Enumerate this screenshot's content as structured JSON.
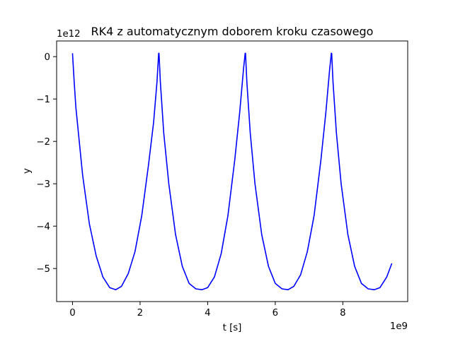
{
  "chart_data": {
    "type": "line",
    "title": "RK4 z automatycznym doborem kroku czasowego",
    "xlabel": "t [s]",
    "ylabel": "y",
    "x_offset_label": "1e9",
    "y_offset_label": "1e12",
    "x_multiplier": 1000000000,
    "y_multiplier": 1000000000000,
    "xlim": [
      -0.47,
      9.92
    ],
    "ylim": [
      -5.78,
      0.37
    ],
    "x_ticks": [
      0,
      2,
      4,
      6,
      8
    ],
    "y_ticks": [
      0,
      -1,
      -2,
      -3,
      -4,
      -5
    ],
    "x_tick_labels": [
      "0",
      "2",
      "4",
      "6",
      "8"
    ],
    "y_tick_labels": [
      "0",
      "−1",
      "−2",
      "−3",
      "−4",
      "−5"
    ],
    "grid": false,
    "series": [
      {
        "color": "#0000ff",
        "x": [
          0.0,
          0.05,
          0.1,
          0.2,
          0.3,
          0.5,
          0.7,
          0.9,
          1.1,
          1.28,
          1.45,
          1.65,
          1.85,
          2.05,
          2.25,
          2.4,
          2.5,
          2.55,
          2.56,
          2.6,
          2.7,
          2.85,
          3.05,
          3.25,
          3.45,
          3.65,
          3.83,
          4.0,
          4.2,
          4.4,
          4.6,
          4.8,
          4.95,
          5.06,
          5.11,
          5.12,
          5.16,
          5.26,
          5.4,
          5.6,
          5.8,
          6.0,
          6.2,
          6.38,
          6.55,
          6.75,
          6.95,
          7.15,
          7.35,
          7.5,
          7.61,
          7.66,
          7.67,
          7.71,
          7.81,
          7.95,
          8.15,
          8.35,
          8.55,
          8.75,
          8.93,
          9.1,
          9.3,
          9.45
        ],
        "y": [
          0.08,
          -0.6,
          -1.2,
          -2.0,
          -2.8,
          -3.95,
          -4.7,
          -5.2,
          -5.45,
          -5.5,
          -5.42,
          -5.12,
          -4.6,
          -3.75,
          -2.55,
          -1.55,
          -0.6,
          0.08,
          0.08,
          -0.6,
          -1.8,
          -3.0,
          -4.2,
          -4.95,
          -5.35,
          -5.48,
          -5.5,
          -5.45,
          -5.2,
          -4.65,
          -3.75,
          -2.45,
          -1.3,
          -0.3,
          0.08,
          0.08,
          -0.6,
          -1.8,
          -3.0,
          -4.2,
          -4.95,
          -5.35,
          -5.48,
          -5.5,
          -5.42,
          -5.15,
          -4.6,
          -3.75,
          -2.45,
          -1.3,
          -0.3,
          0.08,
          0.08,
          -0.6,
          -1.8,
          -3.0,
          -4.2,
          -4.95,
          -5.35,
          -5.48,
          -5.5,
          -5.45,
          -5.2,
          -4.88
        ]
      }
    ]
  }
}
